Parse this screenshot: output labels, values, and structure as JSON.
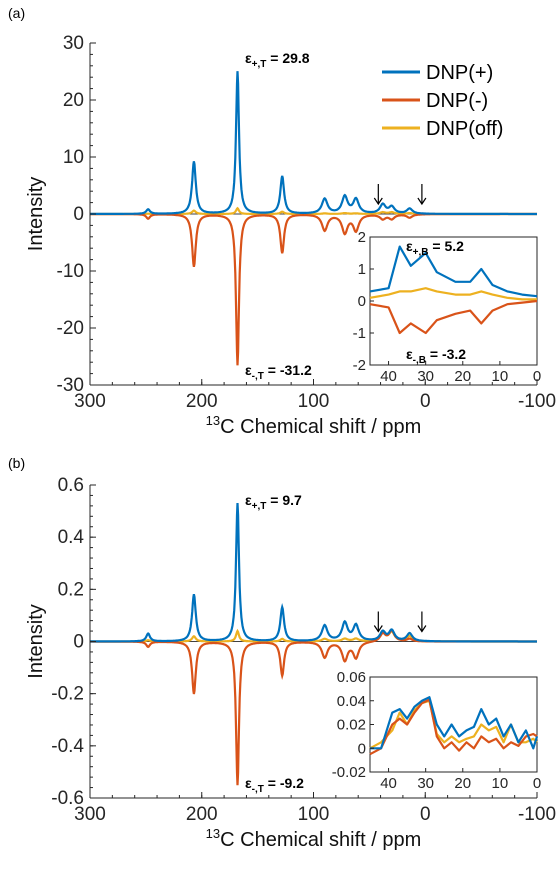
{
  "colors": {
    "dnp_plus": "#0072BD",
    "dnp_minus": "#D95319",
    "dnp_off": "#EDB120",
    "axis": "#262626"
  },
  "legend": [
    "DNP(+)",
    "DNP(-)",
    "DNP(off)"
  ],
  "chart_data": [
    {
      "panel": "(a)",
      "type": "line",
      "xlabel_super": "13",
      "xlabel": "C Chemical shift / ppm",
      "ylabel": "Intensity",
      "xlim": [
        300,
        -100
      ],
      "ylim": [
        -30,
        30
      ],
      "xticks": [
        300,
        200,
        100,
        0,
        -100
      ],
      "yticks": [
        30,
        20,
        10,
        0,
        -10,
        -20,
        -30
      ],
      "peaks": [
        {
          "ppm": 248,
          "plus": 0.8,
          "minus": -0.8,
          "off": 0.05
        },
        {
          "ppm": 207,
          "plus": 9.2,
          "minus": -9.2,
          "off": 0.6
        },
        {
          "ppm": 168,
          "plus": 25.0,
          "minus": -26.5,
          "off": 1.0
        },
        {
          "ppm": 128,
          "plus": 6.6,
          "minus": -6.8,
          "off": 0.4
        },
        {
          "ppm": 90,
          "plus": 2.6,
          "minus": -2.8,
          "off": 0.1
        },
        {
          "ppm": 72,
          "plus": 3.0,
          "minus": -3.2,
          "off": 0.15
        },
        {
          "ppm": 62,
          "plus": 2.5,
          "minus": -2.8,
          "off": 0.1
        },
        {
          "ppm": 38,
          "plus": 1.6,
          "minus": -0.8,
          "off": 0.3
        },
        {
          "ppm": 30,
          "plus": 1.2,
          "minus": -0.8,
          "off": 0.3
        },
        {
          "ppm": 14,
          "plus": 0.9,
          "minus": -0.6,
          "off": 0.15
        }
      ],
      "arrows_ppm": [
        42,
        3
      ],
      "annotations": [
        {
          "sign": "+",
          "sub": "T",
          "text": " = 29.8"
        },
        {
          "sign": "-",
          "sub": "T",
          "text": " = -31.2"
        }
      ],
      "inset": {
        "xlim": [
          45,
          0
        ],
        "ylim": [
          -2,
          2
        ],
        "xticks": [
          40,
          30,
          20,
          10,
          0
        ],
        "yticks": [
          2,
          1,
          0,
          -1,
          -2
        ],
        "plus": [
          [
            45,
            0.3
          ],
          [
            40,
            0.4
          ],
          [
            37,
            1.7
          ],
          [
            34,
            1.1
          ],
          [
            30,
            1.5
          ],
          [
            27,
            0.9
          ],
          [
            22,
            0.6
          ],
          [
            18,
            0.6
          ],
          [
            15,
            1.0
          ],
          [
            12,
            0.5
          ],
          [
            8,
            0.3
          ],
          [
            4,
            0.2
          ],
          [
            0,
            0.15
          ]
        ],
        "minus": [
          [
            45,
            -0.1
          ],
          [
            40,
            -0.2
          ],
          [
            37,
            -1.0
          ],
          [
            34,
            -0.7
          ],
          [
            30,
            -1.0
          ],
          [
            27,
            -0.6
          ],
          [
            22,
            -0.4
          ],
          [
            18,
            -0.3
          ],
          [
            15,
            -0.7
          ],
          [
            12,
            -0.3
          ],
          [
            8,
            -0.1
          ],
          [
            4,
            -0.05
          ],
          [
            0,
            0.0
          ]
        ],
        "off": [
          [
            45,
            0.1
          ],
          [
            40,
            0.2
          ],
          [
            37,
            0.3
          ],
          [
            34,
            0.3
          ],
          [
            30,
            0.4
          ],
          [
            27,
            0.3
          ],
          [
            22,
            0.2
          ],
          [
            18,
            0.2
          ],
          [
            15,
            0.3
          ],
          [
            12,
            0.2
          ],
          [
            8,
            0.1
          ],
          [
            4,
            0.05
          ],
          [
            0,
            0.05
          ]
        ],
        "annotations": [
          {
            "sign": "+",
            "sub": "B",
            "text": " = 5.2"
          },
          {
            "sign": "-",
            "sub": "B",
            "text": " = -3.2"
          }
        ]
      }
    },
    {
      "panel": "(b)",
      "type": "line",
      "xlabel_super": "13",
      "xlabel": "C Chemical shift / ppm",
      "ylabel": "Intensity",
      "xlim": [
        300,
        -100
      ],
      "ylim": [
        -0.6,
        0.6
      ],
      "xticks": [
        300,
        200,
        100,
        0,
        -100
      ],
      "yticks": [
        0.6,
        0.4,
        0.2,
        0,
        -0.2,
        -0.4,
        -0.6
      ],
      "peaks": [
        {
          "ppm": 248,
          "plus": 0.03,
          "minus": -0.02,
          "off": 0.005
        },
        {
          "ppm": 207,
          "plus": 0.18,
          "minus": -0.2,
          "off": 0.02
        },
        {
          "ppm": 168,
          "plus": 0.53,
          "minus": -0.55,
          "off": 0.04
        },
        {
          "ppm": 128,
          "plus": 0.13,
          "minus": -0.13,
          "off": 0.01
        },
        {
          "ppm": 90,
          "plus": 0.06,
          "minus": -0.06,
          "off": 0.01
        },
        {
          "ppm": 72,
          "plus": 0.07,
          "minus": -0.07,
          "off": 0.01
        },
        {
          "ppm": 62,
          "plus": 0.06,
          "minus": -0.06,
          "off": 0.01
        },
        {
          "ppm": 38,
          "plus": 0.035,
          "minus": 0.03,
          "off": 0.03
        },
        {
          "ppm": 30,
          "plus": 0.04,
          "minus": 0.04,
          "off": 0.035
        },
        {
          "ppm": 14,
          "plus": 0.03,
          "minus": 0.01,
          "off": 0.02
        }
      ],
      "arrows_ppm": [
        42,
        3
      ],
      "annotations": [
        {
          "sign": "+",
          "sub": "T",
          "text": " = 9.7"
        },
        {
          "sign": "-",
          "sub": "T",
          "text": " = -9.2"
        }
      ],
      "inset": {
        "xlim": [
          45,
          0
        ],
        "ylim": [
          -0.02,
          0.06
        ],
        "xticks": [
          40,
          30,
          20,
          10,
          0
        ],
        "yticks": [
          0.06,
          0.04,
          0.02,
          0,
          -0.02
        ],
        "plus": [
          [
            45,
            0.0
          ],
          [
            42,
            0.0
          ],
          [
            39,
            0.03
          ],
          [
            37,
            0.033
          ],
          [
            35,
            0.025
          ],
          [
            33,
            0.035
          ],
          [
            31,
            0.04
          ],
          [
            29,
            0.043
          ],
          [
            27,
            0.02
          ],
          [
            25,
            0.01
          ],
          [
            23,
            0.02
          ],
          [
            21,
            0.01
          ],
          [
            19,
            0.015
          ],
          [
            17,
            0.018
          ],
          [
            15,
            0.033
          ],
          [
            13,
            0.02
          ],
          [
            11,
            0.025
          ],
          [
            9,
            0.01
          ],
          [
            7,
            0.02
          ],
          [
            5,
            0.005
          ],
          [
            3,
            0.015
          ],
          [
            1,
            0.0
          ],
          [
            0,
            0.01
          ]
        ],
        "minus": [
          [
            45,
            -0.005
          ],
          [
            42,
            0.0
          ],
          [
            39,
            0.02
          ],
          [
            37,
            0.025
          ],
          [
            35,
            0.02
          ],
          [
            33,
            0.03
          ],
          [
            31,
            0.038
          ],
          [
            29,
            0.041
          ],
          [
            27,
            0.01
          ],
          [
            25,
            0.0
          ],
          [
            23,
            0.005
          ],
          [
            21,
            -0.002
          ],
          [
            19,
            0.005
          ],
          [
            17,
            0.0
          ],
          [
            15,
            0.01
          ],
          [
            13,
            0.005
          ],
          [
            11,
            0.008
          ],
          [
            9,
            0.0
          ],
          [
            7,
            0.005
          ],
          [
            5,
            0.002
          ],
          [
            3,
            0.01
          ],
          [
            1,
            0.012
          ],
          [
            0,
            0.01
          ]
        ],
        "off": [
          [
            45,
            0.0
          ],
          [
            42,
            0.005
          ],
          [
            39,
            0.015
          ],
          [
            37,
            0.03
          ],
          [
            35,
            0.02
          ],
          [
            33,
            0.032
          ],
          [
            31,
            0.038
          ],
          [
            29,
            0.04
          ],
          [
            27,
            0.012
          ],
          [
            25,
            0.005
          ],
          [
            23,
            0.01
          ],
          [
            21,
            0.005
          ],
          [
            19,
            0.008
          ],
          [
            17,
            0.01
          ],
          [
            15,
            0.02
          ],
          [
            13,
            0.015
          ],
          [
            11,
            0.018
          ],
          [
            9,
            0.005
          ],
          [
            7,
            0.02
          ],
          [
            5,
            0.005
          ],
          [
            3,
            0.005
          ],
          [
            1,
            0.008
          ],
          [
            0,
            0.005
          ]
        ],
        "annotations": []
      }
    }
  ]
}
